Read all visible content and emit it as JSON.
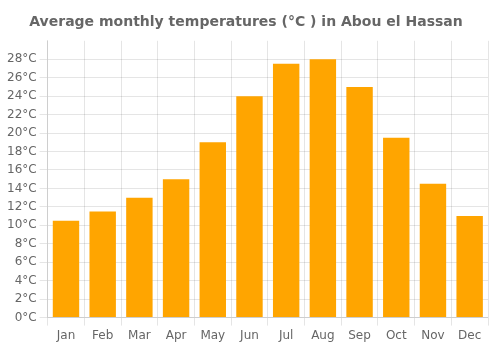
{
  "chart_data": {
    "type": "bar",
    "title": "Average monthly temperatures (°C ) in Abou el Hassan",
    "categories": [
      "Jan",
      "Feb",
      "Mar",
      "Apr",
      "May",
      "Jun",
      "Jul",
      "Aug",
      "Sep",
      "Oct",
      "Nov",
      "Dec"
    ],
    "values": [
      10.5,
      11.5,
      13.0,
      15.0,
      19.0,
      24.0,
      27.5,
      28.0,
      25.0,
      19.5,
      14.5,
      11.0
    ],
    "color": "#FFA500",
    "ylim": [
      0,
      30
    ],
    "yticks": [
      {
        "value": 0,
        "label": "0°C"
      },
      {
        "value": 2,
        "label": "2°C"
      },
      {
        "value": 4,
        "label": "4°C"
      },
      {
        "value": 6,
        "label": "6°C"
      },
      {
        "value": 8,
        "label": "8°C"
      },
      {
        "value": 10,
        "label": "10°C"
      },
      {
        "value": 12,
        "label": "12°C"
      },
      {
        "value": 14,
        "label": "14°C"
      },
      {
        "value": 16,
        "label": "16°C"
      },
      {
        "value": 18,
        "label": "18°C"
      },
      {
        "value": 20,
        "label": "20°C"
      },
      {
        "value": 22,
        "label": "22°C"
      },
      {
        "value": 24,
        "label": "24°C"
      },
      {
        "value": 26,
        "label": "26°C"
      },
      {
        "value": 28,
        "label": "28°C"
      }
    ],
    "grid": true
  }
}
